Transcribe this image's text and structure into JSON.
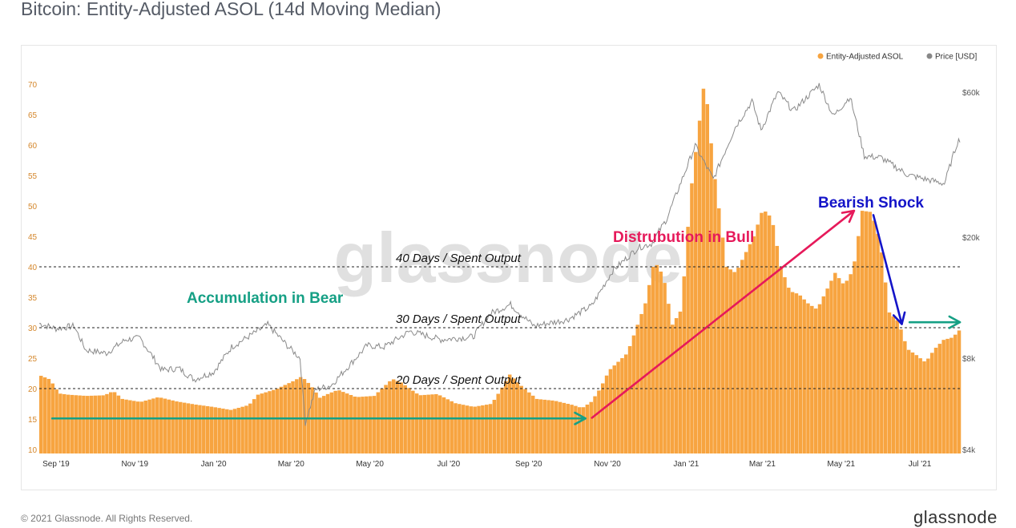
{
  "title": "Bitcoin: Entity-Adjusted ASOL (14d Moving Median)",
  "footer": {
    "copyright": "© 2021 Glassnode. All Rights Reserved.",
    "brand": "glassnode"
  },
  "watermark": "glassnode",
  "colors": {
    "bars": "#f7a440",
    "price_line": "#8a8a8a",
    "green": "#16a085",
    "pink": "#e6195a",
    "blue": "#1414c8"
  },
  "chart_data": {
    "type": "bar",
    "legend": [
      {
        "name": "Entity-Adjusted ASOL",
        "color": "#f7a440"
      },
      {
        "name": "Price [USD]",
        "color": "#888888"
      }
    ],
    "legend_position": "top-right",
    "grid": false,
    "x_range": [
      "2019-08-19",
      "2021-08-01"
    ],
    "x_ticks": [
      {
        "label": "Sep '19",
        "date": "2019-09-01"
      },
      {
        "label": "Nov '19",
        "date": "2019-11-01"
      },
      {
        "label": "Jan '20",
        "date": "2020-01-01"
      },
      {
        "label": "Mar '20",
        "date": "2020-03-01"
      },
      {
        "label": "May '20",
        "date": "2020-05-01"
      },
      {
        "label": "Jul '20",
        "date": "2020-07-01"
      },
      {
        "label": "Sep '20",
        "date": "2020-09-01"
      },
      {
        "label": "Nov '20",
        "date": "2020-11-01"
      },
      {
        "label": "Jan '21",
        "date": "2021-01-01"
      },
      {
        "label": "Mar '21",
        "date": "2021-03-01"
      },
      {
        "label": "May '21",
        "date": "2021-05-01"
      },
      {
        "label": "Jul '21",
        "date": "2021-07-01"
      }
    ],
    "y_left": {
      "range": [
        10,
        71
      ],
      "ticks": [
        10,
        15,
        20,
        25,
        30,
        35,
        40,
        45,
        50,
        55,
        60,
        65,
        70
      ]
    },
    "y_right": {
      "scale": "log",
      "range": [
        4000,
        67000
      ],
      "ticks": [
        {
          "label": "$4k",
          "value": 4000
        },
        {
          "label": "$8k",
          "value": 8000
        },
        {
          "label": "$20k",
          "value": 20000
        },
        {
          "label": "$60k",
          "value": 60000
        }
      ]
    },
    "series": [
      {
        "name": "Entity-Adjusted ASOL",
        "points": [
          [
            "2019-08-19",
            22.1
          ],
          [
            "2019-08-26",
            21.5
          ],
          [
            "2019-09-02",
            19.2
          ],
          [
            "2019-09-09",
            19.0
          ],
          [
            "2019-09-23",
            18.8
          ],
          [
            "2019-10-07",
            18.9
          ],
          [
            "2019-10-14",
            19.6
          ],
          [
            "2019-10-21",
            18.3
          ],
          [
            "2019-11-04",
            17.8
          ],
          [
            "2019-11-18",
            18.6
          ],
          [
            "2019-12-02",
            17.9
          ],
          [
            "2019-12-16",
            17.4
          ],
          [
            "2019-12-30",
            17.0
          ],
          [
            "2020-01-13",
            16.5
          ],
          [
            "2020-01-27",
            17.3
          ],
          [
            "2020-02-03",
            19.0
          ],
          [
            "2020-02-17",
            19.9
          ],
          [
            "2020-03-01",
            21.2
          ],
          [
            "2020-03-08",
            22.0
          ],
          [
            "2020-03-15",
            20.5
          ],
          [
            "2020-03-22",
            18.5
          ],
          [
            "2020-03-29",
            19.2
          ],
          [
            "2020-04-05",
            19.8
          ],
          [
            "2020-04-19",
            18.6
          ],
          [
            "2020-05-03",
            18.8
          ],
          [
            "2020-05-17",
            21.6
          ],
          [
            "2020-05-24",
            21.0
          ],
          [
            "2020-06-07",
            18.9
          ],
          [
            "2020-06-21",
            19.1
          ],
          [
            "2020-07-05",
            17.6
          ],
          [
            "2020-07-19",
            17.0
          ],
          [
            "2020-08-02",
            17.5
          ],
          [
            "2020-08-09",
            19.8
          ],
          [
            "2020-08-16",
            22.3
          ],
          [
            "2020-08-23",
            20.8
          ],
          [
            "2020-09-06",
            18.3
          ],
          [
            "2020-09-20",
            18.0
          ],
          [
            "2020-10-04",
            17.3
          ],
          [
            "2020-10-11",
            16.8
          ],
          [
            "2020-10-18",
            17.8
          ],
          [
            "2020-10-25",
            20.0
          ],
          [
            "2020-11-01",
            23.0
          ],
          [
            "2020-11-15",
            25.8
          ],
          [
            "2020-11-29",
            34.0
          ],
          [
            "2020-12-06",
            41.0
          ],
          [
            "2020-12-13",
            38.5
          ],
          [
            "2020-12-20",
            30.5
          ],
          [
            "2020-12-27",
            33.0
          ],
          [
            "2021-01-03",
            52.0
          ],
          [
            "2021-01-10",
            64.0
          ],
          [
            "2021-01-14",
            71.0
          ],
          [
            "2021-01-21",
            56.0
          ],
          [
            "2021-01-31",
            40.0
          ],
          [
            "2021-02-07",
            39.0
          ],
          [
            "2021-02-21",
            45.0
          ],
          [
            "2021-02-28",
            49.5
          ],
          [
            "2021-03-07",
            48.0
          ],
          [
            "2021-03-14",
            40.0
          ],
          [
            "2021-03-21",
            36.0
          ],
          [
            "2021-03-28",
            35.5
          ],
          [
            "2021-04-04",
            34.0
          ],
          [
            "2021-04-11",
            33.0
          ],
          [
            "2021-04-25",
            39.0
          ],
          [
            "2021-05-02",
            37.0
          ],
          [
            "2021-05-09",
            39.5
          ],
          [
            "2021-05-16",
            49.2
          ],
          [
            "2021-05-23",
            49.0
          ],
          [
            "2021-05-30",
            44.0
          ],
          [
            "2021-06-06",
            32.5
          ],
          [
            "2021-06-13",
            31.0
          ],
          [
            "2021-06-20",
            26.5
          ],
          [
            "2021-06-27",
            25.5
          ],
          [
            "2021-07-04",
            24.3
          ],
          [
            "2021-07-11",
            26.5
          ],
          [
            "2021-07-18",
            28.0
          ],
          [
            "2021-07-25",
            28.4
          ],
          [
            "2021-08-01",
            30.0
          ]
        ]
      },
      {
        "name": "Price [USD]",
        "points": [
          [
            "2019-08-19",
            10400
          ],
          [
            "2019-09-01",
            10000
          ],
          [
            "2019-09-15",
            10200
          ],
          [
            "2019-09-24",
            8500
          ],
          [
            "2019-10-10",
            8300
          ],
          [
            "2019-10-25",
            9200
          ],
          [
            "2019-11-05",
            9300
          ],
          [
            "2019-11-22",
            7300
          ],
          [
            "2019-12-05",
            7400
          ],
          [
            "2019-12-17",
            6800
          ],
          [
            "2020-01-01",
            7200
          ],
          [
            "2020-01-15",
            8700
          ],
          [
            "2020-02-12",
            10300
          ],
          [
            "2020-02-28",
            8700
          ],
          [
            "2020-03-08",
            8000
          ],
          [
            "2020-03-12",
            4900
          ],
          [
            "2020-03-20",
            6300
          ],
          [
            "2020-04-01",
            6500
          ],
          [
            "2020-04-29",
            8800
          ],
          [
            "2020-05-12",
            8700
          ],
          [
            "2020-06-01",
            9800
          ],
          [
            "2020-06-25",
            9200
          ],
          [
            "2020-07-20",
            9400
          ],
          [
            "2020-08-02",
            11200
          ],
          [
            "2020-08-18",
            12000
          ],
          [
            "2020-09-05",
            10200
          ],
          [
            "2020-10-01",
            10700
          ],
          [
            "2020-10-20",
            11900
          ],
          [
            "2020-11-05",
            15500
          ],
          [
            "2020-11-25",
            18500
          ],
          [
            "2020-12-05",
            19000
          ],
          [
            "2020-12-17",
            23000
          ],
          [
            "2021-01-08",
            40000
          ],
          [
            "2021-01-22",
            31000
          ],
          [
            "2021-02-08",
            46000
          ],
          [
            "2021-02-21",
            56000
          ],
          [
            "2021-02-28",
            45000
          ],
          [
            "2021-03-13",
            60000
          ],
          [
            "2021-03-25",
            52000
          ],
          [
            "2021-04-14",
            63500
          ],
          [
            "2021-04-25",
            50000
          ],
          [
            "2021-05-08",
            58000
          ],
          [
            "2021-05-19",
            37000
          ],
          [
            "2021-06-01",
            36500
          ],
          [
            "2021-06-22",
            32000
          ],
          [
            "2021-07-20",
            30000
          ],
          [
            "2021-07-30",
            41000
          ],
          [
            "2021-08-01",
            42000
          ]
        ]
      }
    ],
    "reference_lines": [
      {
        "value": 40,
        "label": "40 Days / Spent Output"
      },
      {
        "value": 30,
        "label": "30 Days / Spent Output"
      },
      {
        "value": 20,
        "label": "20 Days / Spent Output"
      }
    ],
    "annotations": [
      {
        "text": "Accumulation in Bear",
        "color": "#16a085"
      },
      {
        "text": "Distrubution in Bull",
        "color": "#e6195a"
      },
      {
        "text": "Bearish Shock",
        "color": "#1414c8"
      }
    ],
    "arrows": [
      {
        "name": "accumulation-arrow",
        "color": "#16a085",
        "from": [
          "2019-08-29",
          15.1
        ],
        "to": [
          "2020-10-15",
          15.1
        ]
      },
      {
        "name": "distribution-arrow",
        "color": "#e6195a",
        "from": [
          "2020-10-20",
          15.2
        ],
        "to": [
          "2021-05-11",
          49.2
        ]
      },
      {
        "name": "bearish-shock-arrow",
        "color": "#1414c8",
        "from": [
          "2021-05-26",
          48.5
        ],
        "to": [
          "2021-06-17",
          30.6
        ]
      },
      {
        "name": "outlook-arrow",
        "color": "#16a085",
        "from": [
          "2021-06-23",
          30.9
        ],
        "to": [
          "2021-08-01",
          30.9
        ]
      }
    ]
  }
}
